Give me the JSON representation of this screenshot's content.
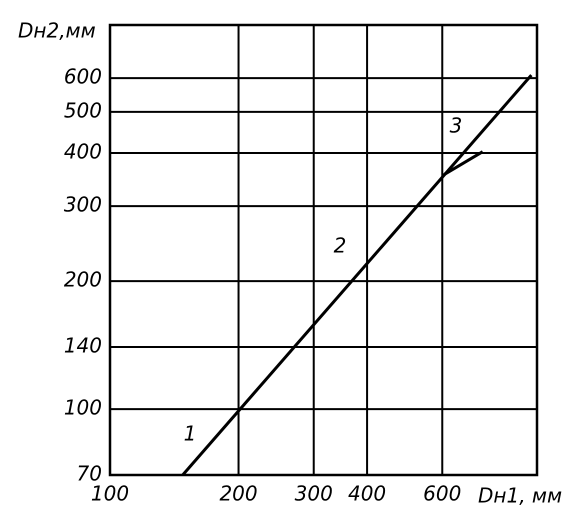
{
  "chart_data": {
    "type": "line",
    "y_label": "Dн2,мм",
    "x_label": "Dн1, мм",
    "log_x": true,
    "log_y": true,
    "grid": true,
    "xlim": [
      100,
      1000
    ],
    "ylim": [
      70,
      800
    ],
    "xticks": [
      100,
      200,
      300,
      400,
      600
    ],
    "yticks": [
      70,
      100,
      140,
      200,
      300,
      400,
      500,
      600
    ],
    "series": [
      {
        "name": "1",
        "color": "#000000",
        "x": [
          148,
          216,
          257
        ],
        "values": [
          70,
          null,
          null
        ],
        "dash": true
      },
      {
        "name": "2",
        "color": "#000000",
        "x": [
          148,
          970
        ],
        "values": [
          70,
          610
        ]
      },
      {
        "name": "3",
        "color": "#000000",
        "x": [
          606,
          746
        ],
        "values": [
          356,
          403
        ]
      }
    ]
  }
}
